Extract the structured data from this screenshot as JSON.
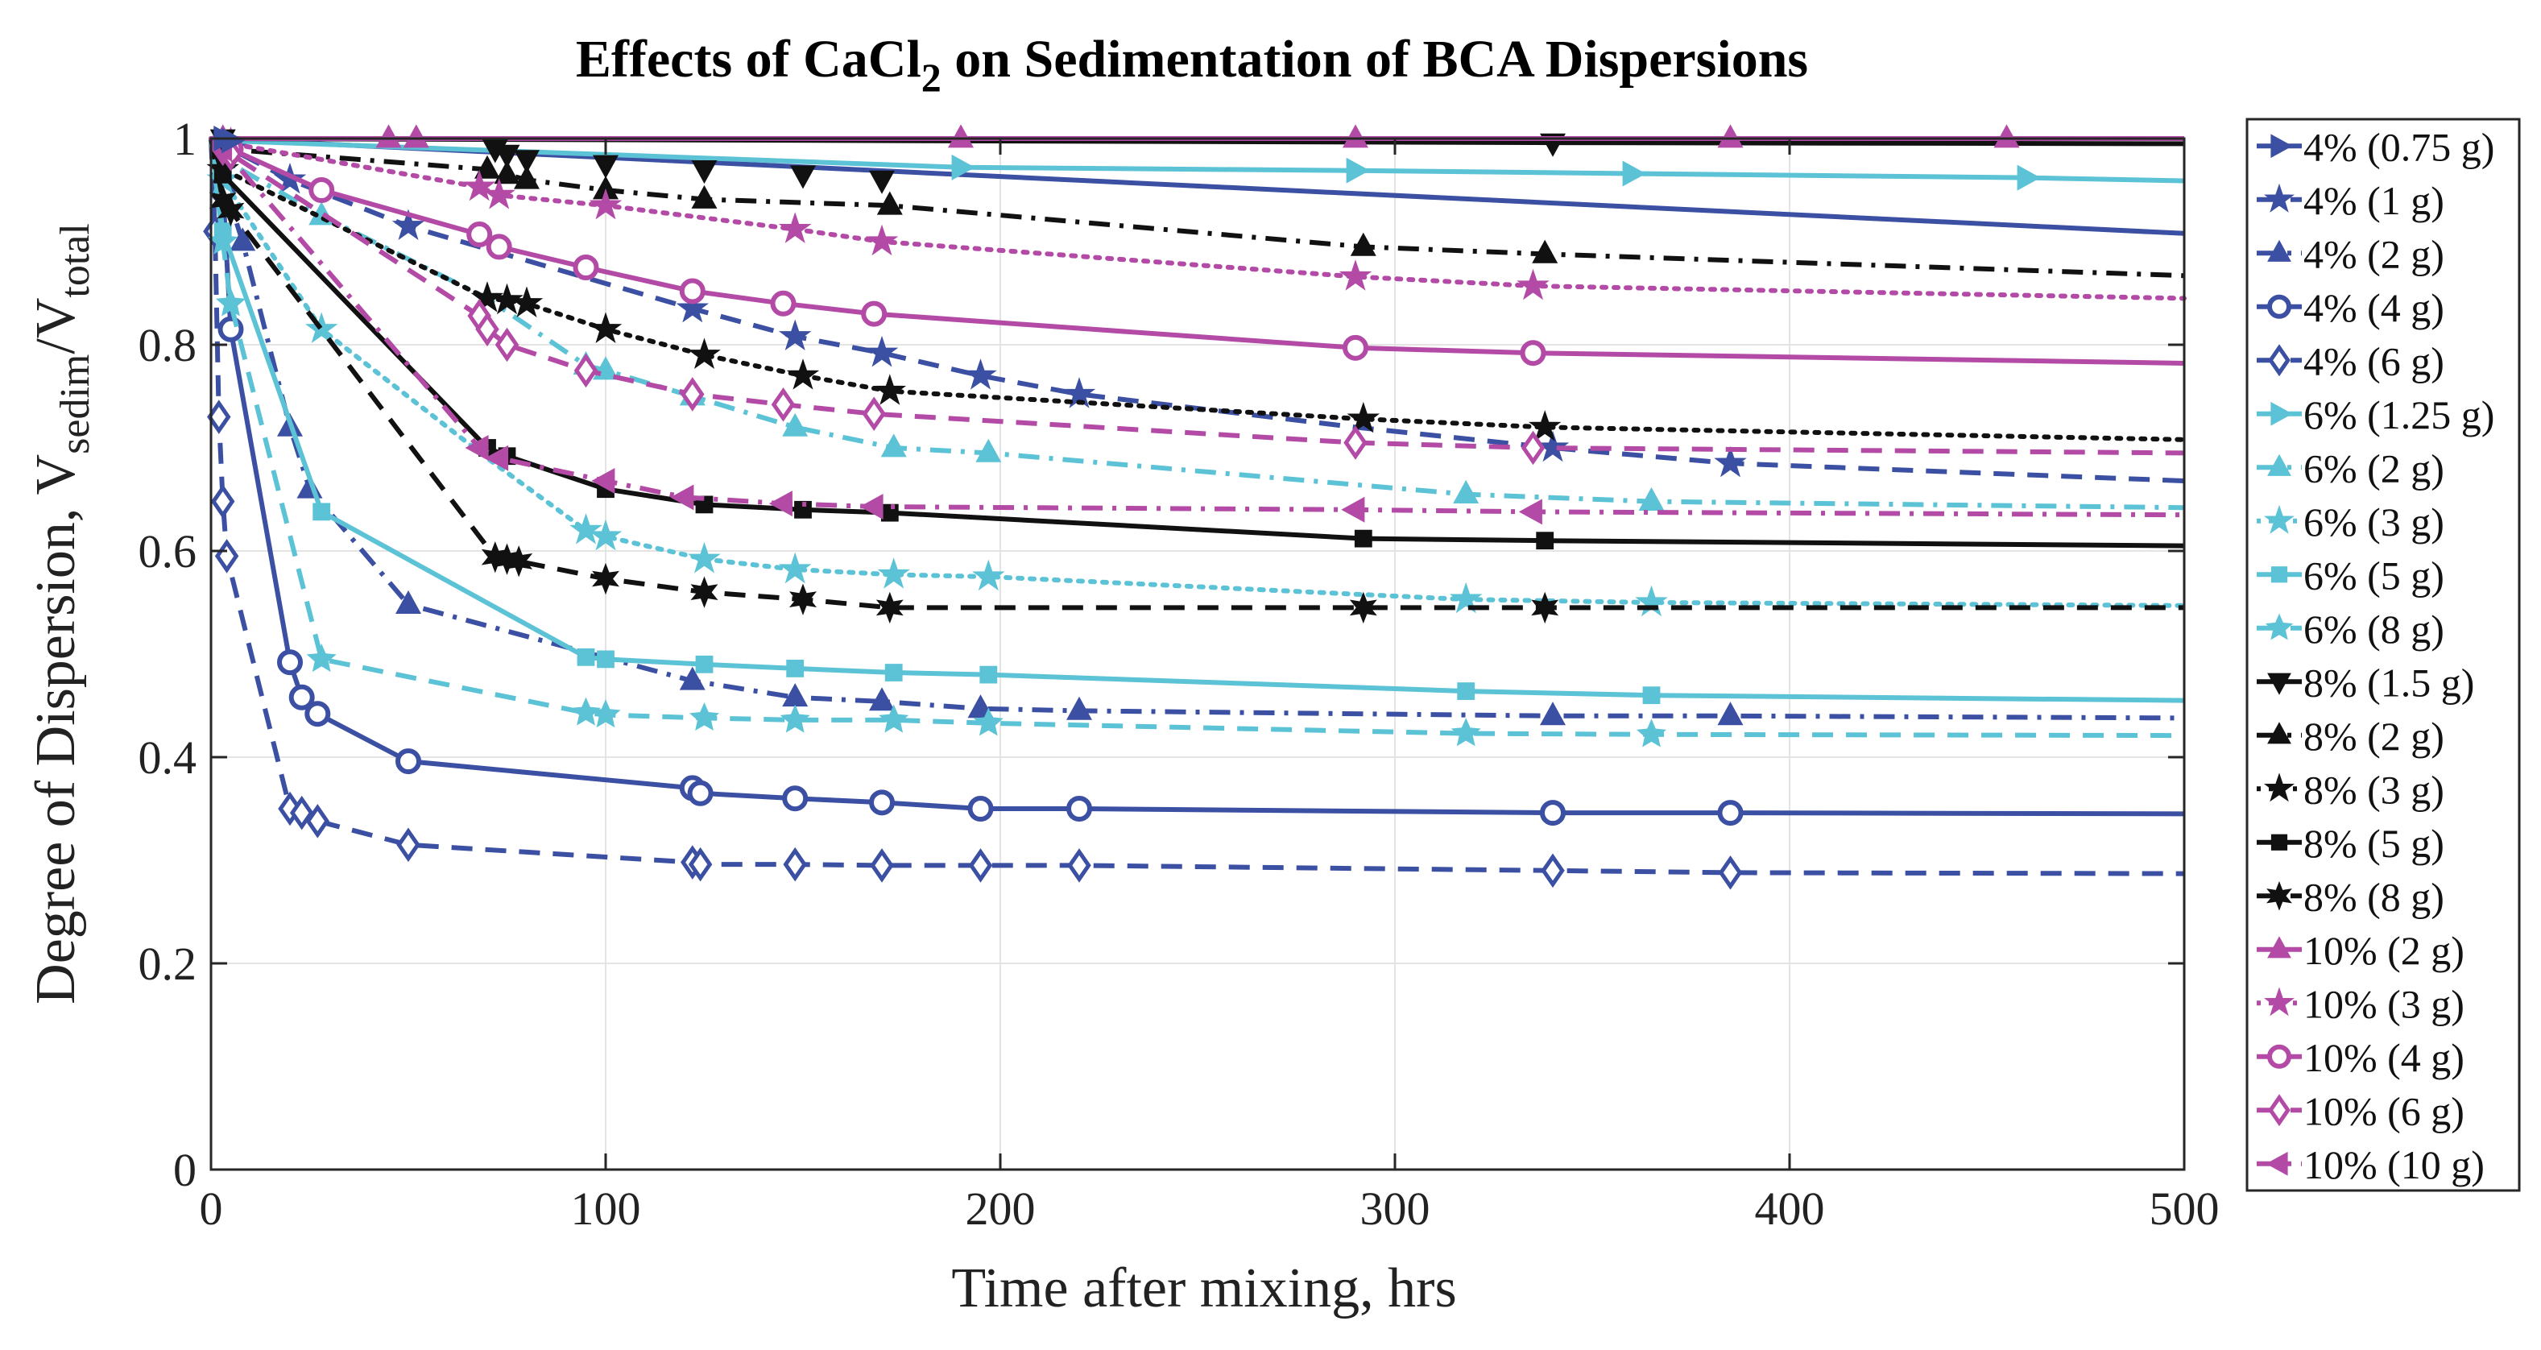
{
  "chart_data": {
    "type": "line",
    "title_main": "Effects of CaCl",
    "title_sub": "2",
    "title_rest": " on Sedimentation of BCA Dispersions",
    "xlabel": "Time after mixing, hrs",
    "ylabel_main": "Degree of Dispersion, V",
    "ylabel_sub1": "sedim",
    "ylabel_mid": "/V",
    "ylabel_sub2": "total",
    "xlim": [
      0,
      500
    ],
    "ylim": [
      0,
      1
    ],
    "xticks": [
      0,
      100,
      200,
      300,
      400,
      500
    ],
    "yticks": [
      0,
      0.2,
      0.4,
      0.6,
      0.8,
      1
    ],
    "xtick_labels": [
      "0",
      "100",
      "200",
      "300",
      "400",
      "500"
    ],
    "ytick_labels": [
      "0",
      "0.2",
      "0.4",
      "0.6",
      "0.8",
      "1"
    ],
    "grid": true,
    "legend_position": "outside-right",
    "colors": {
      "blue": "#3b4fa3",
      "cyan": "#5cc2d6",
      "black": "#111111",
      "magenta": "#b34ba6"
    },
    "series": [
      {
        "name": "4% (0.75 g)",
        "color": "#3b4fa3",
        "dash": "solid",
        "marker": "tri-right",
        "x": [
          0,
          500
        ],
        "y": [
          1.0,
          0.908
        ],
        "mx": []
      },
      {
        "name": "4% (1 g)",
        "color": "#3b4fa3",
        "dash": "dashed",
        "marker": "star",
        "x": [
          0,
          5,
          20,
          50,
          122,
          148,
          170,
          195,
          220,
          290,
          340,
          385,
          500
        ],
        "y": [
          1.0,
          0.99,
          0.96,
          0.915,
          0.835,
          0.808,
          0.792,
          0.77,
          0.752,
          0.72,
          0.7,
          0.685,
          0.668
        ],
        "mx": [
          5,
          20,
          50,
          122,
          148,
          170,
          195,
          220,
          340,
          385
        ]
      },
      {
        "name": "4% (2 g)",
        "color": "#3b4fa3",
        "dash": "dashdot",
        "marker": "tri-up",
        "x": [
          0,
          3,
          8,
          20,
          25,
          50,
          122,
          148,
          170,
          195,
          220,
          340,
          385,
          500
        ],
        "y": [
          1.0,
          0.96,
          0.9,
          0.72,
          0.66,
          0.548,
          0.474,
          0.458,
          0.454,
          0.447,
          0.445,
          0.44,
          0.44,
          0.438
        ],
        "mx": [
          3,
          8,
          20,
          25,
          50,
          122,
          148,
          170,
          195,
          220,
          340,
          385
        ]
      },
      {
        "name": "4% (4 g)",
        "color": "#3b4fa3",
        "dash": "solid",
        "marker": "circle",
        "x": [
          0,
          3,
          5,
          20,
          23,
          27,
          50,
          122,
          124,
          148,
          170,
          195,
          220,
          340,
          385,
          500
        ],
        "y": [
          1.0,
          0.95,
          0.815,
          0.492,
          0.458,
          0.442,
          0.396,
          0.37,
          0.365,
          0.36,
          0.356,
          0.35,
          0.35,
          0.346,
          0.346,
          0.345
        ],
        "mx": [
          3,
          5,
          20,
          23,
          27,
          50,
          122,
          124,
          148,
          170,
          195,
          220,
          340,
          385
        ]
      },
      {
        "name": "4% (6 g)",
        "color": "#3b4fa3",
        "dash": "dashed",
        "marker": "diamond",
        "x": [
          0,
          1,
          2,
          3,
          4,
          20,
          23,
          27,
          50,
          122,
          124,
          148,
          170,
          195,
          220,
          340,
          385,
          500
        ],
        "y": [
          1.0,
          0.91,
          0.73,
          0.648,
          0.595,
          0.35,
          0.346,
          0.338,
          0.315,
          0.298,
          0.296,
          0.296,
          0.295,
          0.295,
          0.295,
          0.29,
          0.288,
          0.287
        ],
        "mx": [
          1,
          2,
          3,
          4,
          20,
          23,
          27,
          50,
          122,
          124,
          148,
          170,
          195,
          220,
          340,
          385
        ]
      },
      {
        "name": "6% (1.25 g)",
        "color": "#5cc2d6",
        "dash": "solid",
        "marker": "tri-right",
        "x": [
          0,
          3,
          190,
          290,
          360,
          460,
          500
        ],
        "y": [
          1.0,
          0.998,
          0.972,
          0.969,
          0.966,
          0.962,
          0.959
        ],
        "mx": [
          3,
          190,
          290,
          360,
          460
        ]
      },
      {
        "name": "6% (2 g)",
        "color": "#5cc2d6",
        "dash": "dashdot",
        "marker": "tri-up",
        "x": [
          0,
          3,
          28,
          70,
          95,
          100,
          122,
          148,
          173,
          197,
          318,
          365,
          500
        ],
        "y": [
          1.0,
          0.98,
          0.925,
          0.845,
          0.78,
          0.775,
          0.75,
          0.72,
          0.7,
          0.695,
          0.655,
          0.648,
          0.642
        ],
        "mx": [
          3,
          28,
          95,
          100,
          122,
          148,
          173,
          197,
          318,
          365
        ]
      },
      {
        "name": "6% (3 g)",
        "color": "#5cc2d6",
        "dash": "dotted",
        "marker": "star",
        "x": [
          0,
          3,
          28,
          70,
          95,
          100,
          125,
          148,
          173,
          197,
          318,
          365,
          500
        ],
        "y": [
          1.0,
          0.96,
          0.815,
          0.69,
          0.62,
          0.614,
          0.592,
          0.582,
          0.577,
          0.575,
          0.553,
          0.55,
          0.547
        ],
        "mx": [
          3,
          28,
          95,
          100,
          125,
          148,
          173,
          197,
          318,
          365
        ]
      },
      {
        "name": "6% (5 g)",
        "color": "#5cc2d6",
        "dash": "solid",
        "marker": "square",
        "x": [
          0,
          3,
          28,
          95,
          100,
          125,
          148,
          173,
          197,
          318,
          365,
          500
        ],
        "y": [
          1.0,
          0.91,
          0.638,
          0.497,
          0.495,
          0.49,
          0.486,
          0.482,
          0.48,
          0.464,
          0.46,
          0.455
        ],
        "mx": [
          3,
          28,
          95,
          100,
          125,
          148,
          173,
          197,
          318,
          365
        ]
      },
      {
        "name": "6% (8 g)",
        "color": "#5cc2d6",
        "dash": "dashed",
        "marker": "pentagram",
        "x": [
          0,
          3,
          5,
          28,
          95,
          100,
          125,
          148,
          173,
          197,
          318,
          365,
          500
        ],
        "y": [
          1.0,
          0.9,
          0.84,
          0.495,
          0.443,
          0.441,
          0.438,
          0.436,
          0.436,
          0.433,
          0.423,
          0.422,
          0.421
        ],
        "mx": [
          3,
          5,
          28,
          95,
          100,
          125,
          148,
          173,
          197,
          318,
          365
        ]
      },
      {
        "name": "8% (1.5 g)",
        "color": "#111111",
        "dash": "solid",
        "marker": "tri-down",
        "x": [
          0,
          340,
          500
        ],
        "y": [
          1.0,
          0.996,
          0.995
        ],
        "mx": [
          340
        ]
      },
      {
        "name": "8% (2 g)",
        "color": "#111111",
        "dash": "dashdot",
        "marker": "tri-up",
        "x": [
          0,
          3,
          70,
          75,
          80,
          100,
          125,
          172,
          292,
          338,
          500
        ],
        "y": [
          1.0,
          0.99,
          0.97,
          0.965,
          0.96,
          0.95,
          0.941,
          0.935,
          0.895,
          0.888,
          0.867
        ],
        "mx": [
          3,
          70,
          75,
          80,
          100,
          125,
          172,
          292,
          338
        ]
      },
      {
        "name": "8% (3 g)",
        "color": "#111111",
        "dash": "dotted",
        "marker": "star",
        "x": [
          0,
          3,
          70,
          75,
          80,
          100,
          125,
          150,
          172,
          292,
          338,
          500
        ],
        "y": [
          1.0,
          0.97,
          0.845,
          0.843,
          0.84,
          0.815,
          0.79,
          0.77,
          0.755,
          0.728,
          0.72,
          0.708
        ],
        "mx": [
          3,
          70,
          75,
          80,
          100,
          125,
          150,
          172,
          292,
          338
        ]
      },
      {
        "name": "8% (5 g)",
        "color": "#111111",
        "dash": "solid",
        "marker": "square",
        "x": [
          0,
          3,
          70,
          75,
          100,
          125,
          150,
          172,
          292,
          338,
          500
        ],
        "y": [
          1.0,
          0.965,
          0.7,
          0.692,
          0.66,
          0.645,
          0.64,
          0.637,
          0.612,
          0.61,
          0.605
        ],
        "mx": [
          3,
          70,
          75,
          100,
          125,
          150,
          172,
          292,
          338
        ]
      },
      {
        "name": "8% (8 g)",
        "color": "#111111",
        "dash": "dashed",
        "marker": "hexagram",
        "x": [
          0,
          3,
          5,
          72,
          75,
          78,
          100,
          125,
          150,
          172,
          292,
          338,
          500
        ],
        "y": [
          1.0,
          0.94,
          0.93,
          0.594,
          0.592,
          0.59,
          0.573,
          0.56,
          0.553,
          0.545,
          0.545,
          0.545,
          0.545
        ],
        "mx": [
          3,
          5,
          72,
          75,
          78,
          100,
          125,
          150,
          172,
          292,
          338
        ]
      },
      {
        "name": "10% (2 g)",
        "color": "#b34ba6",
        "dash": "solid",
        "marker": "tri-up",
        "x": [
          0,
          500
        ],
        "y": [
          1.0,
          1.0
        ],
        "mx": []
      },
      {
        "name": "10% (3 g)",
        "color": "#b34ba6",
        "dash": "dotted",
        "marker": "star",
        "x": [
          0,
          5,
          68,
          73,
          100,
          148,
          170,
          290,
          335,
          500
        ],
        "y": [
          1.0,
          0.995,
          0.953,
          0.945,
          0.935,
          0.912,
          0.9,
          0.866,
          0.857,
          0.845
        ],
        "mx": [
          5,
          68,
          73,
          100,
          148,
          170,
          290,
          335
        ]
      },
      {
        "name": "10% (4 g)",
        "color": "#b34ba6",
        "dash": "solid",
        "marker": "circle",
        "x": [
          0,
          3,
          5,
          28,
          68,
          73,
          95,
          122,
          145,
          168,
          290,
          335,
          500
        ],
        "y": [
          1.0,
          0.995,
          0.99,
          0.95,
          0.907,
          0.895,
          0.875,
          0.852,
          0.84,
          0.83,
          0.797,
          0.792,
          0.782
        ],
        "mx": [
          3,
          5,
          28,
          68,
          73,
          95,
          122,
          145,
          168,
          290,
          335
        ]
      },
      {
        "name": "10% (6 g)",
        "color": "#b34ba6",
        "dash": "dashed",
        "marker": "diamond",
        "x": [
          0,
          3,
          5,
          68,
          70,
          75,
          95,
          122,
          145,
          168,
          290,
          335,
          500
        ],
        "y": [
          1.0,
          0.99,
          0.985,
          0.828,
          0.815,
          0.8,
          0.775,
          0.752,
          0.742,
          0.733,
          0.705,
          0.7,
          0.695
        ],
        "mx": [
          3,
          5,
          68,
          70,
          75,
          95,
          122,
          145,
          168,
          290,
          335
        ]
      },
      {
        "name": "10% (10 g)",
        "color": "#b34ba6",
        "dash": "dashdot",
        "marker": "tri-left",
        "x": [
          0,
          3,
          68,
          73,
          100,
          120,
          145,
          168,
          290,
          335,
          500
        ],
        "y": [
          1.0,
          0.99,
          0.7,
          0.69,
          0.668,
          0.652,
          0.646,
          0.643,
          0.64,
          0.638,
          0.635
        ],
        "mx": [
          3,
          68,
          73,
          100,
          120,
          145,
          168,
          290,
          335
        ]
      }
    ],
    "overlay_markers": [
      {
        "series": "8% (1.5 g)",
        "x": [
          3,
          72,
          75,
          80,
          100,
          125,
          150,
          170
        ],
        "y": [
          1.0,
          0.99,
          0.985,
          0.98,
          0.975,
          0.97,
          0.965,
          0.96
        ]
      },
      {
        "series": "10% (2 g)",
        "x": [
          3,
          45,
          52,
          190,
          290,
          385,
          455
        ],
        "y": [
          1.0,
          1.0,
          1.0,
          1.0,
          1.0,
          1.0,
          1.0
        ]
      },
      {
        "series": "4% (0.75 g)",
        "x": [
          3,
          5
        ],
        "y": [
          1.0,
          0.998
        ]
      }
    ]
  }
}
